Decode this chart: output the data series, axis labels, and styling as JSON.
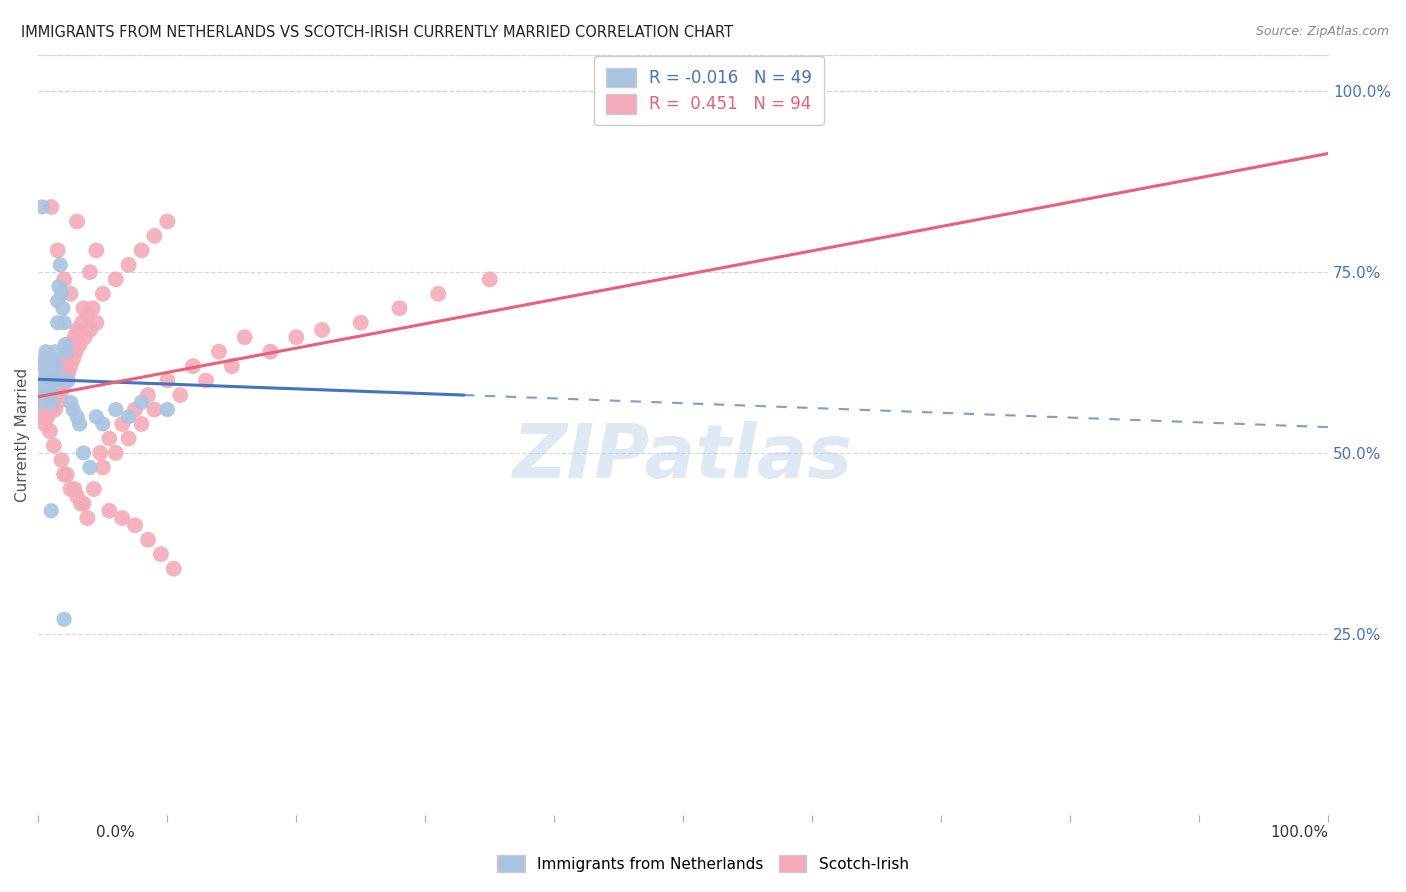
{
  "title": "IMMIGRANTS FROM NETHERLANDS VS SCOTCH-IRISH CURRENTLY MARRIED CORRELATION CHART",
  "source": "Source: ZipAtlas.com",
  "ylabel": "Currently Married",
  "ylabel_right_ticks": [
    "100.0%",
    "75.0%",
    "50.0%",
    "25.0%"
  ],
  "ylabel_right_vals": [
    1.0,
    0.75,
    0.5,
    0.25
  ],
  "legend1_label": "Immigrants from Netherlands",
  "legend2_label": "Scotch-Irish",
  "r1": "-0.016",
  "n1": "49",
  "r2": "0.451",
  "n2": "94",
  "color_blue": "#a8c4e0",
  "color_pink": "#f4aab8",
  "color_line_blue": "#4472c4",
  "color_line_pink": "#e8607a",
  "watermark": "ZIPatlas",
  "background": "#ffffff",
  "grid_color": "#d0d8e8",
  "blue_scatter_x": [
    0.002,
    0.003,
    0.004,
    0.004,
    0.005,
    0.005,
    0.006,
    0.006,
    0.007,
    0.007,
    0.008,
    0.008,
    0.009,
    0.009,
    0.01,
    0.01,
    0.011,
    0.011,
    0.012,
    0.012,
    0.013,
    0.013,
    0.014,
    0.014,
    0.015,
    0.015,
    0.016,
    0.017,
    0.018,
    0.019,
    0.02,
    0.021,
    0.022,
    0.023,
    0.025,
    0.027,
    0.03,
    0.032,
    0.035,
    0.04,
    0.045,
    0.05,
    0.06,
    0.07,
    0.08,
    0.1,
    0.003,
    0.01,
    0.02
  ],
  "blue_scatter_y": [
    0.57,
    0.59,
    0.6,
    0.62,
    0.58,
    0.63,
    0.61,
    0.64,
    0.6,
    0.62,
    0.58,
    0.61,
    0.59,
    0.63,
    0.57,
    0.61,
    0.6,
    0.62,
    0.59,
    0.63,
    0.61,
    0.64,
    0.6,
    0.62,
    0.71,
    0.68,
    0.73,
    0.76,
    0.72,
    0.7,
    0.68,
    0.65,
    0.64,
    0.6,
    0.57,
    0.56,
    0.55,
    0.54,
    0.5,
    0.48,
    0.55,
    0.54,
    0.56,
    0.55,
    0.57,
    0.56,
    0.84,
    0.42,
    0.27
  ],
  "pink_scatter_x": [
    0.002,
    0.003,
    0.004,
    0.005,
    0.006,
    0.007,
    0.008,
    0.009,
    0.01,
    0.011,
    0.012,
    0.013,
    0.014,
    0.015,
    0.016,
    0.017,
    0.018,
    0.019,
    0.02,
    0.021,
    0.022,
    0.023,
    0.024,
    0.025,
    0.026,
    0.027,
    0.028,
    0.029,
    0.03,
    0.032,
    0.034,
    0.036,
    0.038,
    0.04,
    0.042,
    0.045,
    0.048,
    0.05,
    0.055,
    0.06,
    0.065,
    0.07,
    0.075,
    0.08,
    0.085,
    0.09,
    0.1,
    0.11,
    0.12,
    0.13,
    0.14,
    0.15,
    0.16,
    0.18,
    0.2,
    0.22,
    0.25,
    0.28,
    0.31,
    0.35,
    0.01,
    0.015,
    0.02,
    0.025,
    0.03,
    0.035,
    0.04,
    0.045,
    0.05,
    0.06,
    0.07,
    0.08,
    0.09,
    0.1,
    0.02,
    0.025,
    0.03,
    0.035,
    0.055,
    0.065,
    0.075,
    0.085,
    0.095,
    0.105,
    0.003,
    0.006,
    0.009,
    0.012,
    0.018,
    0.022,
    0.028,
    0.033,
    0.038,
    0.043
  ],
  "pink_scatter_y": [
    0.58,
    0.55,
    0.56,
    0.54,
    0.57,
    0.55,
    0.58,
    0.56,
    0.6,
    0.57,
    0.58,
    0.56,
    0.59,
    0.57,
    0.6,
    0.58,
    0.61,
    0.59,
    0.62,
    0.6,
    0.63,
    0.61,
    0.64,
    0.62,
    0.65,
    0.63,
    0.66,
    0.64,
    0.67,
    0.65,
    0.68,
    0.66,
    0.69,
    0.67,
    0.7,
    0.68,
    0.5,
    0.48,
    0.52,
    0.5,
    0.54,
    0.52,
    0.56,
    0.54,
    0.58,
    0.56,
    0.6,
    0.58,
    0.62,
    0.6,
    0.64,
    0.62,
    0.66,
    0.64,
    0.66,
    0.67,
    0.68,
    0.7,
    0.72,
    0.74,
    0.84,
    0.78,
    0.74,
    0.72,
    0.82,
    0.7,
    0.75,
    0.78,
    0.72,
    0.74,
    0.76,
    0.78,
    0.8,
    0.82,
    0.47,
    0.45,
    0.44,
    0.43,
    0.42,
    0.41,
    0.4,
    0.38,
    0.36,
    0.34,
    0.57,
    0.55,
    0.53,
    0.51,
    0.49,
    0.47,
    0.45,
    0.43,
    0.41,
    0.45
  ],
  "xlim": [
    0,
    1.0
  ],
  "ylim": [
    0.0,
    1.05
  ]
}
